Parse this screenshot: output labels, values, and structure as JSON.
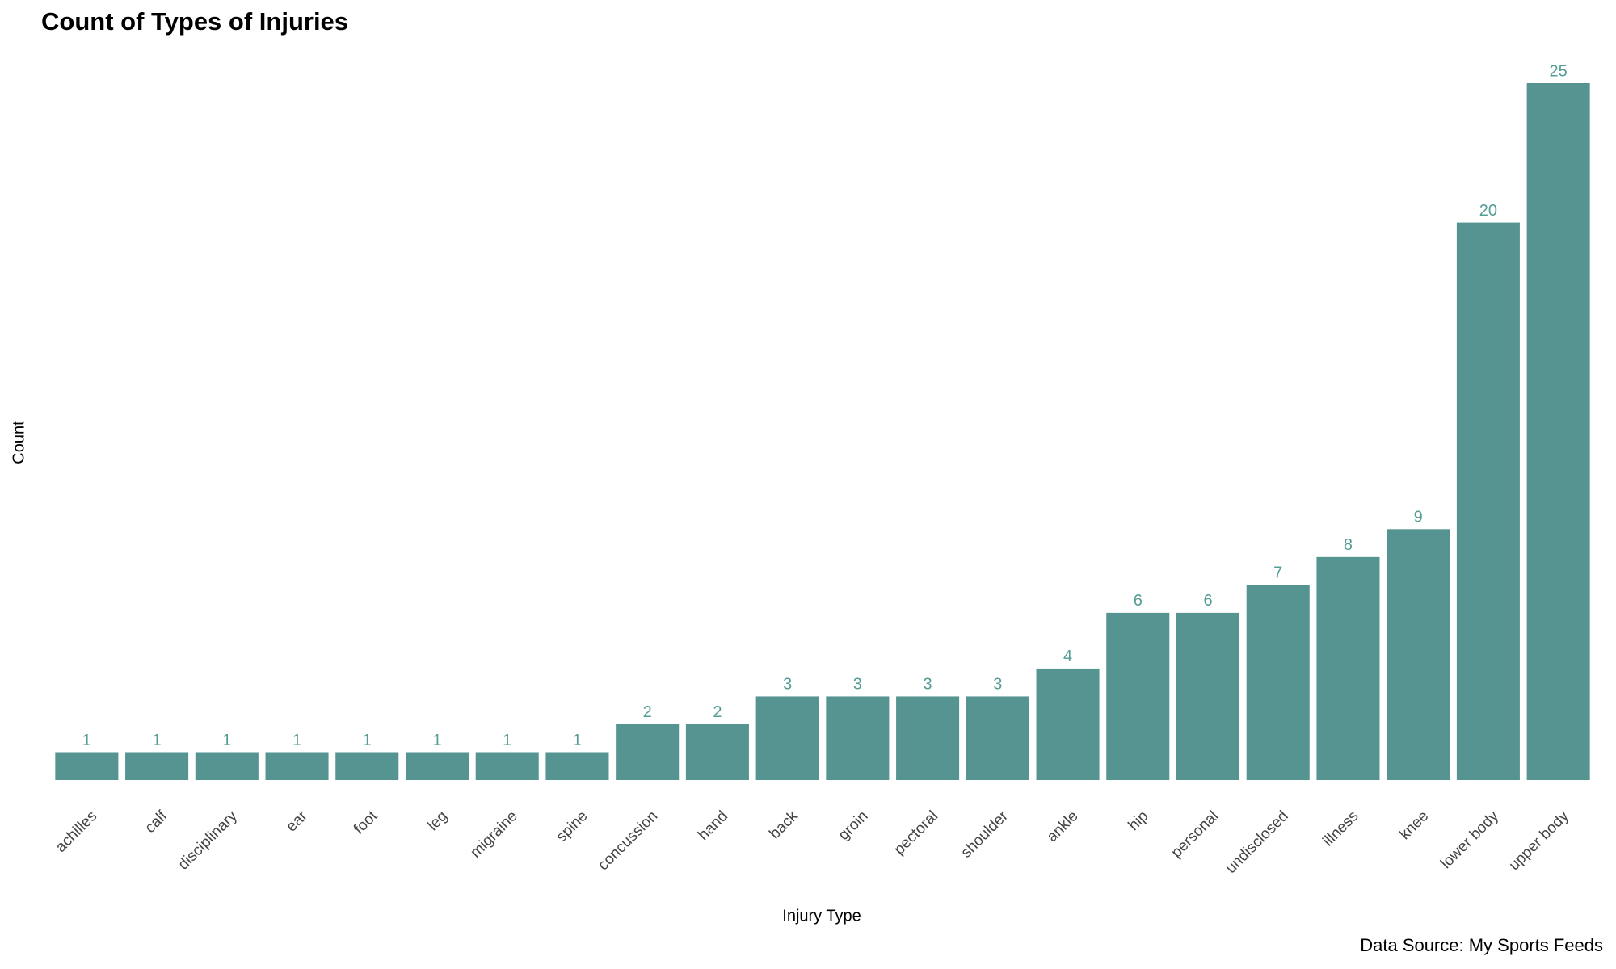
{
  "chart_data": {
    "type": "bar",
    "title": "Count of Types of Injuries",
    "x_label": "Injury Type",
    "y_label": "Count",
    "caption": "Data Source: My Sports Feeds",
    "categories": [
      "achilles",
      "calf",
      "disciplinary",
      "ear",
      "foot",
      "leg",
      "migraine",
      "spine",
      "concussion",
      "hand",
      "back",
      "groin",
      "pectoral",
      "shoulder",
      "ankle",
      "hip",
      "personal",
      "undisclosed",
      "illness",
      "knee",
      "lower body",
      "upper body"
    ],
    "values": [
      1,
      1,
      1,
      1,
      1,
      1,
      1,
      1,
      2,
      2,
      3,
      3,
      3,
      3,
      4,
      6,
      6,
      7,
      8,
      9,
      20,
      25
    ],
    "color": "#559490",
    "label_color": "#559c94"
  }
}
